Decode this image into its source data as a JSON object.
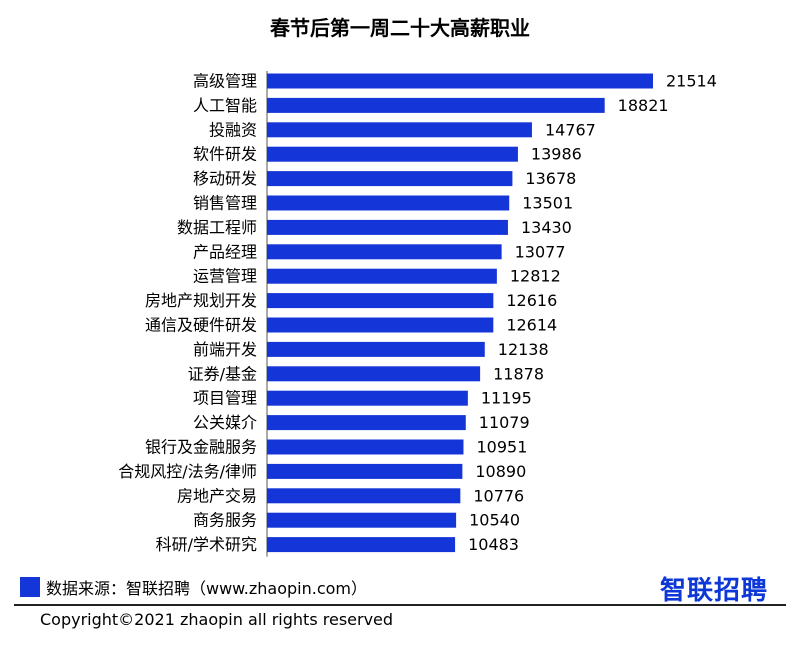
{
  "chart_data": {
    "type": "bar",
    "orientation": "horizontal",
    "title": "春节后第一周二十大高薪职业",
    "categories": [
      "高级管理",
      "人工智能",
      "投融资",
      "软件研发",
      "移动研发",
      "销售管理",
      "数据工程师",
      "产品经理",
      "运营管理",
      "房地产规划开发",
      "通信及硬件研发",
      "前端开发",
      "证券/基金",
      "项目管理",
      "公关媒介",
      "银行及金融服务",
      "合规风控/法务/律师",
      "房地产交易",
      "商务服务",
      "科研/学术研究"
    ],
    "values": [
      21514,
      18821,
      14767,
      13986,
      13678,
      13501,
      13430,
      13077,
      12812,
      12616,
      12614,
      12138,
      11878,
      11195,
      11079,
      10951,
      10890,
      10776,
      10540,
      10483
    ],
    "bar_color": "#1436d8",
    "xlim": [
      0,
      21514
    ],
    "grid": false,
    "legend_position": "bottom-left"
  },
  "legend": {
    "label": "数据来源：智联招聘（www.zhaopin.com）"
  },
  "brand": {
    "logo_text": "智联招聘"
  },
  "footer": {
    "copyright": "Copyright©2021 zhaopin all rights reserved"
  }
}
